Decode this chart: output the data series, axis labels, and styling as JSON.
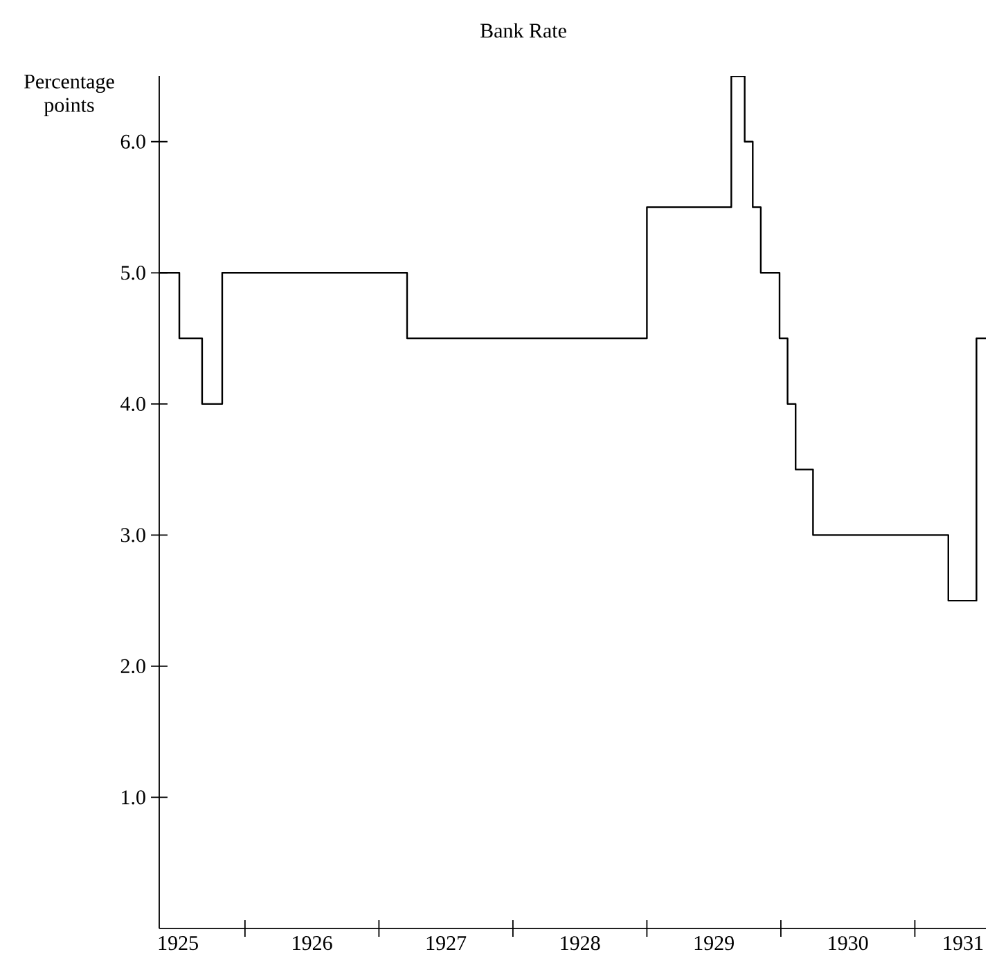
{
  "chart_data": {
    "type": "step",
    "title": "Bank Rate",
    "ylabel": "Percentage points",
    "x": [
      1925.36,
      1925.51,
      1925.68,
      1925.83,
      1927.21,
      1929.0,
      1929.63,
      1929.73,
      1929.79,
      1929.85,
      1929.99,
      1930.05,
      1930.11,
      1930.24,
      1931.25,
      1931.46,
      1931.53
    ],
    "series": [
      {
        "color": "#000000",
        "values": [
          5,
          4.5,
          4,
          5,
          4.5,
          5.5,
          6.5,
          6,
          5.5,
          5,
          4.5,
          4,
          3.5,
          3,
          2.5,
          4.5,
          4.5
        ]
      }
    ],
    "xlim": [
      1925.36,
      1931.53
    ],
    "ylim": [
      0,
      6.5
    ],
    "xticks": [
      {
        "value": 1926,
        "label": null
      },
      {
        "value": 1927,
        "label": null
      },
      {
        "value": 1928,
        "label": null
      },
      {
        "value": 1929,
        "label": null
      },
      {
        "value": 1930,
        "label": null
      },
      {
        "value": 1931,
        "label": null
      },
      {
        "value": 1925.5,
        "label": "1925"
      },
      {
        "value": 1926.5,
        "label": "1926"
      },
      {
        "value": 1927.5,
        "label": "1927"
      },
      {
        "value": 1928.5,
        "label": "1928"
      },
      {
        "value": 1929.5,
        "label": "1929"
      },
      {
        "value": 1930.5,
        "label": "1930"
      },
      {
        "value": 1931.36,
        "label": "1931"
      }
    ],
    "yticks": [
      {
        "value": 1,
        "label": "1.0"
      },
      {
        "value": 2,
        "label": "2.0"
      },
      {
        "value": 3,
        "label": "3.0"
      },
      {
        "value": 4,
        "label": "4.0"
      },
      {
        "value": 5,
        "label": "5.0"
      },
      {
        "value": 6,
        "label": "6.0"
      }
    ]
  }
}
